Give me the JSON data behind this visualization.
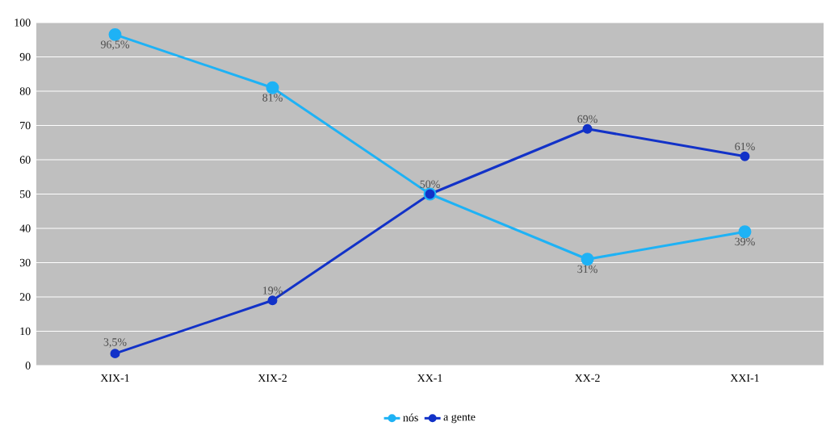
{
  "chart_data": {
    "type": "line",
    "categories": [
      "XIX-1",
      "XIX-2",
      "XX-1",
      "XX-2",
      "XXI-1"
    ],
    "series": [
      {
        "name": "nós",
        "color": "#1eb2f5",
        "values": [
          96.5,
          81,
          50,
          31,
          39
        ],
        "value_labels": [
          "96,5%",
          "81%",
          null,
          "31%",
          "39%"
        ]
      },
      {
        "name": "a gente",
        "color": "#1232c8",
        "values": [
          3.5,
          19,
          50,
          69,
          61
        ],
        "value_labels": [
          "3,5%",
          "19%",
          "50%",
          "69%",
          "61%"
        ]
      }
    ],
    "ylim": [
      0,
      100
    ],
    "yticks": [
      0,
      10,
      20,
      30,
      40,
      50,
      60,
      70,
      80,
      90,
      100
    ],
    "grid": "y",
    "legend": "bottom",
    "marker": "circle",
    "line_style": "solid"
  }
}
